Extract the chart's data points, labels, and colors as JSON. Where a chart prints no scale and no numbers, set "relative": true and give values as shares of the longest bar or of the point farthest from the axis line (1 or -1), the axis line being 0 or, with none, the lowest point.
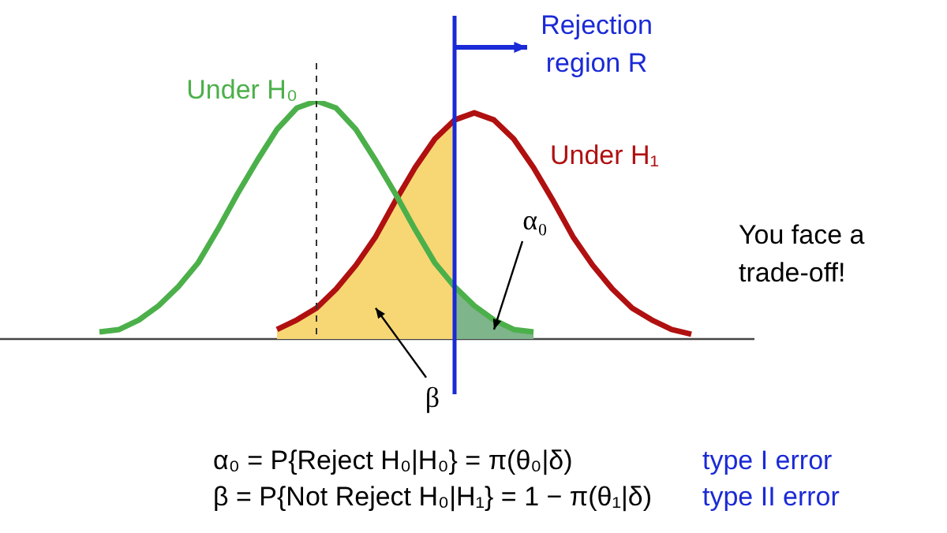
{
  "chart_data": {
    "type": "line",
    "relative": true,
    "categories": [
      null,
      null,
      null,
      null,
      null,
      null,
      null,
      null,
      null,
      null,
      null,
      null,
      null,
      null,
      null,
      null,
      null,
      null,
      null,
      null,
      null,
      null,
      null,
      null,
      null,
      null,
      null,
      null,
      null,
      null,
      null
    ],
    "series": [
      {
        "type": "area",
        "name": "β",
        "color": "#f7d774",
        "values": [
          null,
          null,
          null,
          null,
          null,
          null,
          null,
          null,
          null,
          0.04,
          0.08,
          0.13,
          0.21,
          0.31,
          0.43,
          0.58,
          0.72,
          0.84,
          0.92,
          null,
          null,
          null,
          null,
          null,
          null,
          null,
          null,
          null,
          null,
          null,
          null
        ]
      },
      {
        "type": "area",
        "name": "α₀",
        "color": "#7fb58a",
        "values": [
          null,
          null,
          null,
          null,
          null,
          null,
          null,
          null,
          null,
          null,
          null,
          null,
          null,
          null,
          null,
          null,
          null,
          null,
          0.22,
          0.14,
          0.08,
          0.04,
          0.03,
          null,
          null,
          null,
          null,
          null,
          null,
          null,
          null
        ]
      },
      {
        "name": "Under H₀",
        "color": "#4cb04a",
        "values": [
          0.03,
          0.04,
          0.08,
          0.14,
          0.22,
          0.32,
          0.46,
          0.61,
          0.75,
          0.88,
          0.97,
          1,
          0.97,
          0.88,
          0.75,
          0.61,
          0.46,
          0.32,
          0.22,
          0.14,
          0.08,
          0.04,
          0.03,
          null,
          null,
          null,
          null,
          null,
          null,
          null,
          null
        ]
      },
      {
        "name": "Under H₁",
        "color": "#b01010",
        "values": [
          null,
          null,
          null,
          null,
          null,
          null,
          null,
          null,
          null,
          0.04,
          0.08,
          0.13,
          0.21,
          0.31,
          0.43,
          0.58,
          0.72,
          0.84,
          0.92,
          0.95,
          0.92,
          0.84,
          0.72,
          0.58,
          0.43,
          0.31,
          0.21,
          0.13,
          0.08,
          0.04,
          0.02
        ]
      }
    ],
    "annotations": [
      "Rejection region R",
      "You face a trade-off!",
      "α₀ = P{Reject H₀|H₀} = π(θ₀|δ)",
      "type I error",
      "β = P{Not Reject H₀|H₁} = 1 − π(θ₁|δ)",
      "type II error"
    ]
  }
}
